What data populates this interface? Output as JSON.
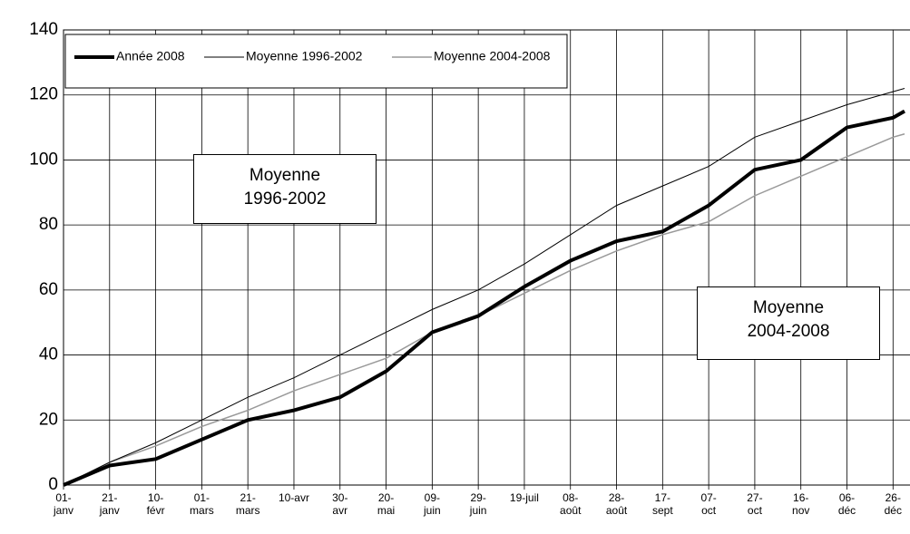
{
  "chart_data": {
    "type": "line",
    "x": [
      0,
      20,
      40,
      60,
      80,
      100,
      120,
      140,
      160,
      180,
      200,
      220,
      240,
      260,
      280,
      300,
      320,
      340,
      360,
      365
    ],
    "series": [
      {
        "name": "Année 2008",
        "color": "#000000",
        "width": 4,
        "values": [
          0,
          6,
          8,
          14,
          20,
          23,
          27,
          35,
          47,
          52,
          61,
          69,
          75,
          78,
          86,
          97,
          100,
          110,
          113,
          115
        ]
      },
      {
        "name": "Moyenne 1996-2002",
        "color": "#000000",
        "width": 1,
        "values": [
          0,
          7,
          13,
          20,
          27,
          33,
          40,
          47,
          54,
          60,
          68,
          77,
          86,
          92,
          98,
          107,
          112,
          117,
          121,
          122
        ]
      },
      {
        "name": "Moyenne 2004-2008",
        "color": "#999999",
        "width": 1.5,
        "values": [
          0,
          7,
          12,
          18,
          23,
          29,
          34,
          39,
          47,
          52,
          59,
          66,
          72,
          77,
          81,
          89,
          95,
          101,
          107,
          108
        ]
      }
    ],
    "xlim": [
      0,
      365
    ],
    "xticks": [
      {
        "value": 0,
        "label": "01-\njanv"
      },
      {
        "value": 20,
        "label": "21-\njanv"
      },
      {
        "value": 40,
        "label": "10-\nfévr"
      },
      {
        "value": 60,
        "label": "01-\nmars"
      },
      {
        "value": 80,
        "label": "21-\nmars"
      },
      {
        "value": 100,
        "label": "10-avr"
      },
      {
        "value": 120,
        "label": "30-\navr"
      },
      {
        "value": 140,
        "label": "20-\nmai"
      },
      {
        "value": 160,
        "label": "09-\njuin"
      },
      {
        "value": 180,
        "label": "29-\njuin"
      },
      {
        "value": 200,
        "label": "19-juil"
      },
      {
        "value": 220,
        "label": "08-\naoût"
      },
      {
        "value": 240,
        "label": "28-\naoût"
      },
      {
        "value": 260,
        "label": "17-\nsept"
      },
      {
        "value": 280,
        "label": "07-\noct"
      },
      {
        "value": 300,
        "label": "27-\noct"
      },
      {
        "value": 320,
        "label": "16-\nnov"
      },
      {
        "value": 340,
        "label": "06-\ndéc"
      },
      {
        "value": 360,
        "label": "26-\ndéc"
      }
    ],
    "ylim": [
      0,
      140
    ],
    "yticks": [
      0,
      20,
      40,
      60,
      80,
      100,
      120,
      140
    ],
    "grid": true,
    "annotations": [
      "Moyenne\n1996-2002",
      "Moyenne\n2004-2008"
    ]
  }
}
